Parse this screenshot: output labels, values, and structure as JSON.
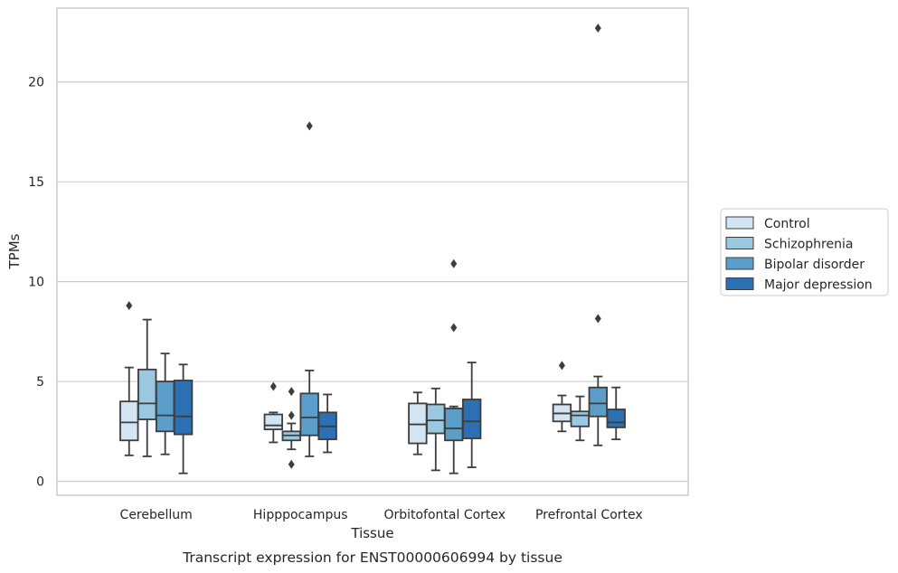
{
  "caption": "Transcript expression for ENST00000606994 by tissue",
  "chart_data": {
    "type": "box",
    "title": "",
    "xlabel": "Tissue",
    "ylabel": "TPMs",
    "ylim": [
      -0.7,
      23.7
    ],
    "yticks": [
      0,
      5,
      10,
      15,
      20
    ],
    "grid": "horizontal",
    "legend_position": "right",
    "categories": [
      "Cerebellum",
      "Hipppocampus",
      "Orbitofontal Cortex",
      "Prefrontal Cortex"
    ],
    "series": [
      {
        "name": "Control",
        "color": "#d3e4f3",
        "boxes": [
          {
            "whislo": 1.3,
            "q1": 2.05,
            "med": 2.95,
            "q3": 4.0,
            "whishi": 5.7,
            "fliers": [
              8.8
            ]
          },
          {
            "whislo": 1.95,
            "q1": 2.6,
            "med": 2.8,
            "q3": 3.35,
            "whishi": 3.45,
            "fliers": [
              4.75
            ]
          },
          {
            "whislo": 1.35,
            "q1": 1.9,
            "med": 2.85,
            "q3": 3.9,
            "whishi": 4.45,
            "fliers": []
          },
          {
            "whislo": 2.5,
            "q1": 3.0,
            "med": 3.4,
            "q3": 3.85,
            "whishi": 4.3,
            "fliers": [
              5.8
            ]
          }
        ]
      },
      {
        "name": "Schizophrenia",
        "color": "#9ac8e0",
        "boxes": [
          {
            "whislo": 1.25,
            "q1": 3.1,
            "med": 3.9,
            "q3": 5.6,
            "whishi": 8.1,
            "fliers": []
          },
          {
            "whislo": 1.6,
            "q1": 2.05,
            "med": 2.3,
            "q3": 2.5,
            "whishi": 2.9,
            "fliers": [
              0.85,
              3.3,
              4.5
            ]
          },
          {
            "whislo": 0.55,
            "q1": 2.4,
            "med": 3.05,
            "q3": 3.85,
            "whishi": 4.65,
            "fliers": []
          },
          {
            "whislo": 2.05,
            "q1": 2.75,
            "med": 3.3,
            "q3": 3.5,
            "whishi": 4.25,
            "fliers": []
          }
        ]
      },
      {
        "name": "Bipolar disorder",
        "color": "#5a9ec9",
        "boxes": [
          {
            "whislo": 1.35,
            "q1": 2.5,
            "med": 3.3,
            "q3": 5.0,
            "whishi": 6.4,
            "fliers": []
          },
          {
            "whislo": 1.25,
            "q1": 2.3,
            "med": 3.2,
            "q3": 4.4,
            "whishi": 5.55,
            "fliers": [
              17.8
            ]
          },
          {
            "whislo": 0.4,
            "q1": 2.05,
            "med": 2.65,
            "q3": 3.65,
            "whishi": 3.75,
            "fliers": [
              7.7,
              10.9
            ]
          },
          {
            "whislo": 1.8,
            "q1": 3.25,
            "med": 3.9,
            "q3": 4.7,
            "whishi": 5.25,
            "fliers": [
              8.15,
              22.7
            ]
          }
        ]
      },
      {
        "name": "Major depression",
        "color": "#2c6fb2",
        "boxes": [
          {
            "whislo": 0.4,
            "q1": 2.35,
            "med": 3.25,
            "q3": 5.05,
            "whishi": 5.85,
            "fliers": []
          },
          {
            "whislo": 1.45,
            "q1": 2.1,
            "med": 2.75,
            "q3": 3.45,
            "whishi": 4.35,
            "fliers": []
          },
          {
            "whislo": 0.7,
            "q1": 2.15,
            "med": 3.0,
            "q3": 4.1,
            "whishi": 5.95,
            "fliers": []
          },
          {
            "whislo": 2.1,
            "q1": 2.7,
            "med": 2.95,
            "q3": 3.6,
            "whishi": 4.7,
            "fliers": []
          }
        ]
      }
    ]
  }
}
